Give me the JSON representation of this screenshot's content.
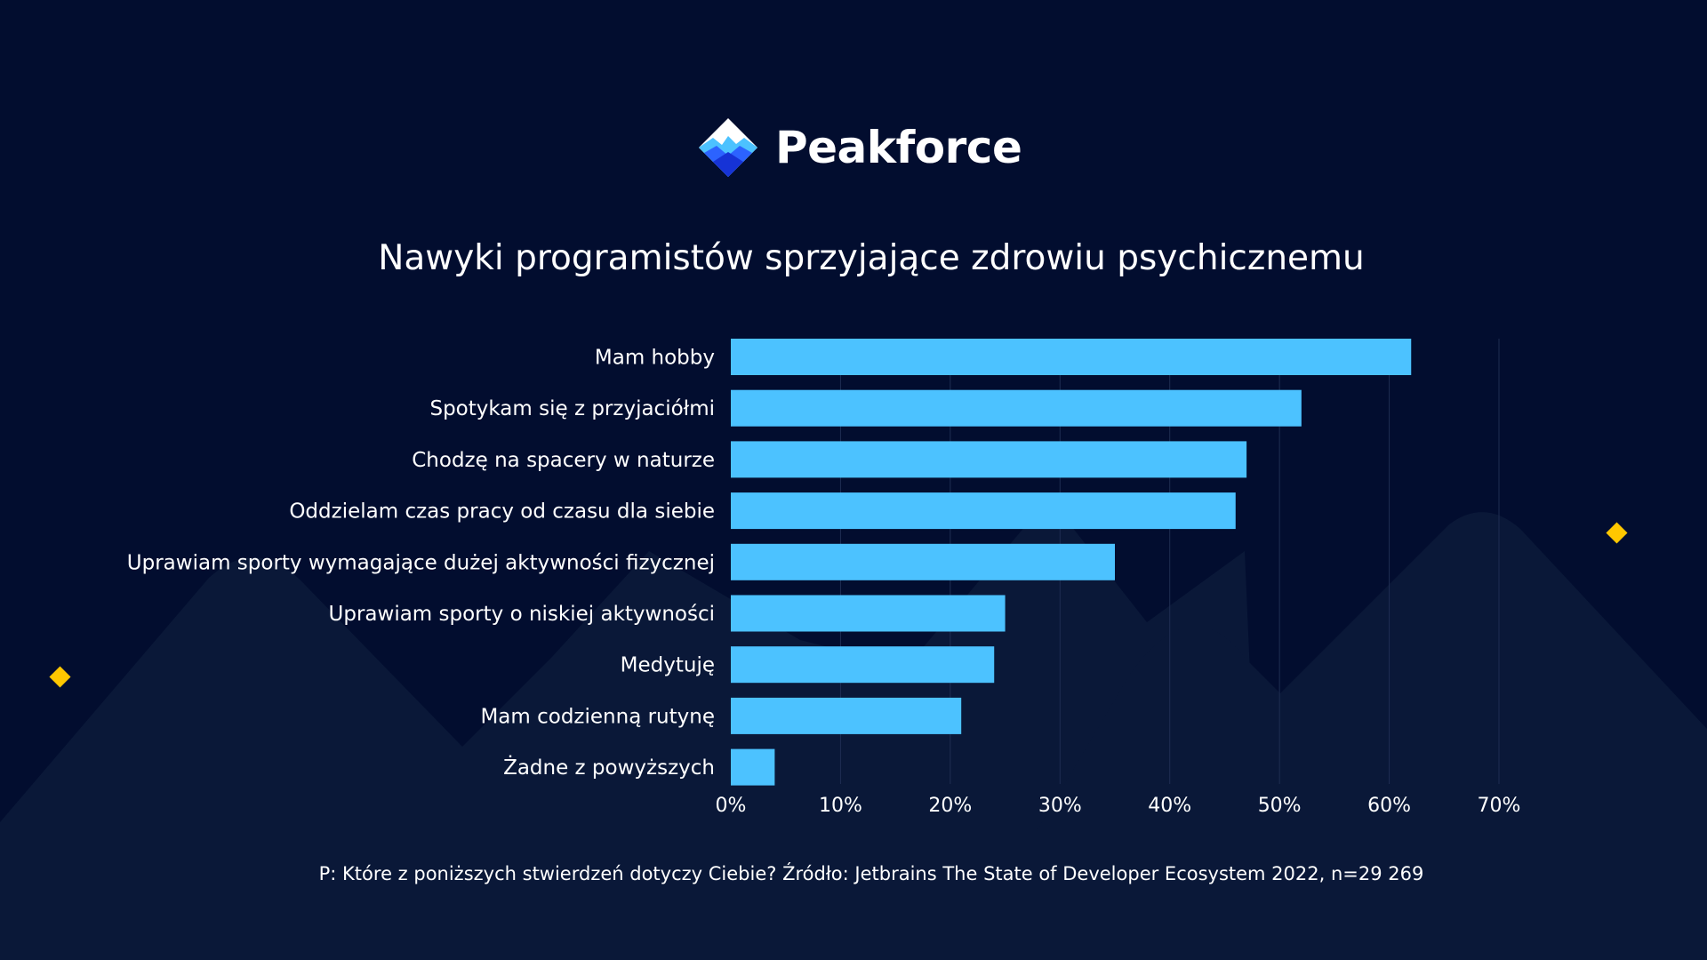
{
  "brand": {
    "name": "Peakforce"
  },
  "colors": {
    "background": "#020d2f",
    "bar": "#4cc2ff",
    "accent_diamond": "#ffc700",
    "mountain": "#0b1a3d",
    "gridline": "#1f2d52",
    "text": "#ffffff"
  },
  "icons": {
    "logo": "peakforce-mountain-logo-icon",
    "decoration": "yellow-diamond-icon"
  },
  "footer": {
    "source": "P: Które z poniższych stwierdzeń dotyczy Ciebie? Źródło: Jetbrains The State of Developer Ecosystem 2022, n=29 269"
  },
  "chart_data": {
    "type": "bar",
    "orientation": "horizontal",
    "title": "Nawyki programistów sprzyjające zdrowiu psychicznemu",
    "xlabel": "",
    "ylabel": "",
    "categories": [
      "Mam hobby",
      "Spotykam się z przyjaciółmi",
      "Chodzę na spacery w naturze",
      "Oddzielam czas pracy od czasu dla siebie",
      "Uprawiam sporty wymagające dużej aktywności fizycznej",
      "Uprawiam sporty o niskiej aktywności",
      "Medytuję",
      "Mam codzienną rutynę",
      "Żadne z powyższych"
    ],
    "values": [
      62,
      52,
      47,
      46,
      35,
      25,
      24,
      21,
      4
    ],
    "xlim": [
      0,
      70
    ],
    "xticks": [
      0,
      10,
      20,
      30,
      40,
      50,
      60,
      70
    ],
    "xtick_labels": [
      "0%",
      "10%",
      "20%",
      "30%",
      "40%",
      "50%",
      "60%",
      "70%"
    ],
    "grid": "vertical"
  }
}
